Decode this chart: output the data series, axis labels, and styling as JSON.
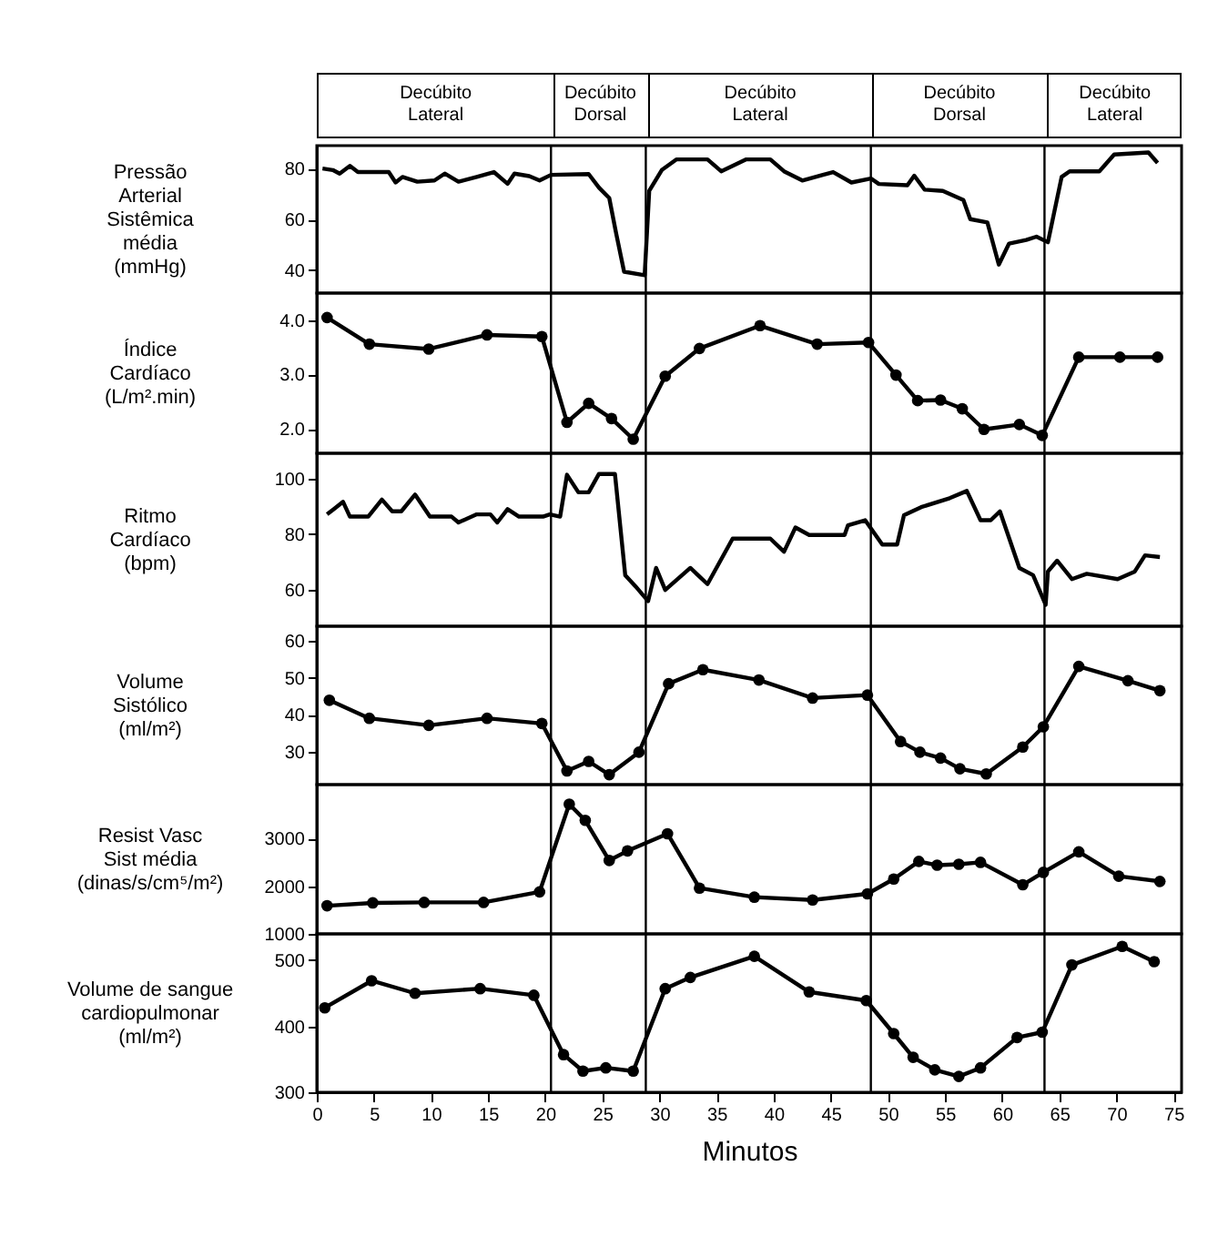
{
  "chart_data": [
    {
      "type": "line",
      "ylabel": "Pressão\nArterial\nSistêmica\nmédia\n(mmHg)",
      "xlim": [
        0,
        75.7
      ],
      "ylim": [
        31,
        89
      ],
      "yticks": [
        40,
        60,
        80
      ],
      "tick_labels": "y",
      "marker": "none",
      "line_style": "solid",
      "annotations": [
        "Decúbito\nLateral",
        "Decúbito\nDorsal",
        "Decúbito\nLateral",
        "Decúbito\nDorsal",
        "Decúbito\nLateral"
      ],
      "ref_lines": [
        {
          "axis": "x",
          "value": 20.5
        },
        {
          "axis": "x",
          "value": 28.8
        },
        {
          "axis": "x",
          "value": 48.5
        },
        {
          "axis": "x",
          "value": 63.7
        }
      ],
      "series": [
        {
          "color": "#000000",
          "x": [
            0.5,
            1.4,
            2.0,
            2.9,
            3.6,
            6.3,
            6.9,
            7.5,
            8.8,
            10.3,
            11.2,
            12.4,
            14.0,
            15.5,
            16.7,
            17.3,
            18.6,
            19.5,
            20.5,
            23.8,
            24.7,
            25.6,
            26.2,
            26.9,
            28.7,
            29.1,
            30.2,
            31.5,
            34.2,
            35.4,
            37.6,
            39.7,
            40.9,
            42.5,
            44.3,
            45.2,
            46.8,
            48.5,
            49.2,
            51.7,
            52.3,
            53.2,
            54.8,
            56.6,
            57.2,
            58.7,
            59.7,
            60.6,
            62.1,
            63.0,
            64.0,
            65.2,
            65.9,
            68.5,
            69.8,
            72.8,
            73.6
          ],
          "values": [
            80,
            79.4,
            78,
            81,
            78.6,
            78.6,
            74.5,
            76.7,
            74.8,
            75.3,
            78,
            74.8,
            76.7,
            78.6,
            74,
            78,
            77,
            75.3,
            77.5,
            77.8,
            72.5,
            68.4,
            54.6,
            39.4,
            38,
            71.2,
            79.4,
            83.6,
            83.6,
            78.9,
            83.6,
            83.6,
            78.9,
            75.3,
            77.5,
            78.6,
            74.5,
            76.1,
            73.9,
            73.4,
            77.2,
            71.7,
            71.2,
            67.6,
            60.1,
            58.8,
            42.2,
            50.5,
            51.9,
            53.2,
            51,
            76.7,
            78.9,
            78.9,
            85.5,
            86.3,
            82.2
          ]
        }
      ]
    },
    {
      "type": "line",
      "ylabel": "Índice\nCardíaco\n(L/m².min)",
      "xlim": [
        0,
        75.7
      ],
      "ylim": [
        1.55,
        4.5
      ],
      "yticks": [
        {
          "value": 2,
          "label": "2.0"
        },
        {
          "value": 3,
          "label": "3.0"
        },
        {
          "value": 4,
          "label": "4.0"
        }
      ],
      "tick_labels": "y",
      "marker": "circle",
      "line_style": "solid",
      "ref_lines": [
        {
          "axis": "x",
          "value": 20.5
        },
        {
          "axis": "x",
          "value": 28.8
        },
        {
          "axis": "x",
          "value": 48.5
        },
        {
          "axis": "x",
          "value": 63.7
        }
      ],
      "series": [
        {
          "color": "#000000",
          "x": [
            0.9,
            4.6,
            9.8,
            14.9,
            19.7,
            21.9,
            23.8,
            25.8,
            27.7,
            30.5,
            33.5,
            38.8,
            43.8,
            48.3,
            50.7,
            52.6,
            54.6,
            56.5,
            58.4,
            61.5,
            63.5,
            66.7,
            70.3,
            73.6
          ],
          "values": [
            4.05,
            3.56,
            3.47,
            3.73,
            3.7,
            2.12,
            2.47,
            2.19,
            1.81,
            2.97,
            3.48,
            3.9,
            3.56,
            3.59,
            2.99,
            2.52,
            2.53,
            2.37,
            1.99,
            2.08,
            1.88,
            3.32,
            3.32,
            3.32
          ]
        }
      ]
    },
    {
      "type": "line",
      "ylabel": "Ritmo\nCardíaco\n(bpm)",
      "xlim": [
        0,
        75.7
      ],
      "ylim": [
        47,
        109
      ],
      "yticks": [
        60,
        80,
        100
      ],
      "tick_labels": "y",
      "marker": "none",
      "line_style": "solid",
      "ref_lines": [
        {
          "axis": "x",
          "value": 20.5
        },
        {
          "axis": "x",
          "value": 28.8
        },
        {
          "axis": "x",
          "value": 48.5
        },
        {
          "axis": "x",
          "value": 63.7
        }
      ],
      "series": [
        {
          "color": "#000000",
          "x": [
            0.9,
            1.5,
            2.3,
            2.9,
            4.5,
            5.7,
            6.6,
            7.4,
            8.6,
            9.9,
            11.8,
            12.4,
            14.0,
            15.2,
            15.8,
            16.7,
            17.7,
            19.8,
            20.4,
            21.3,
            21.9,
            22.9,
            23.8,
            24.7,
            26.1,
            27.0,
            27.9,
            29.0,
            29.7,
            30.5,
            32.7,
            34.2,
            36.4,
            39.7,
            40.9,
            41.9,
            43.1,
            46.2,
            46.5,
            48.0,
            49.5,
            50.8,
            51.4,
            52.9,
            55.4,
            56.9,
            58.1,
            59.0,
            59.8,
            61.5,
            62.7,
            63.8,
            64.0,
            64.8,
            66.1,
            67.4,
            70.1,
            71.6,
            72.5,
            73.8
          ],
          "values": [
            87.1,
            89,
            91.6,
            86.3,
            86.3,
            92.4,
            88.2,
            88.2,
            94.2,
            86.3,
            86.3,
            84.2,
            87.1,
            87.1,
            84.2,
            89,
            86.3,
            86.3,
            87.1,
            86.3,
            101.3,
            95,
            95,
            101.6,
            101.6,
            65.3,
            61.3,
            56,
            67.9,
            60,
            67.9,
            62.1,
            78.4,
            78.4,
            73.7,
            82.4,
            79.7,
            79.7,
            83.2,
            85,
            76.3,
            76.3,
            86.8,
            89.7,
            92.9,
            95.5,
            85,
            85,
            88.2,
            67.9,
            65.3,
            54.7,
            66.6,
            70.5,
            63.9,
            65.8,
            63.9,
            66.6,
            72.4,
            71.8
          ]
        }
      ]
    },
    {
      "type": "line",
      "ylabel": "Volume\nSistólico\n(ml/m²)",
      "xlim": [
        0,
        75.7
      ],
      "ylim": [
        21,
        64
      ],
      "yticks": [
        30,
        40,
        50,
        60
      ],
      "tick_labels": "y",
      "marker": "circle",
      "line_style": "solid",
      "ref_lines": [
        {
          "axis": "x",
          "value": 20.5
        },
        {
          "axis": "x",
          "value": 28.8
        },
        {
          "axis": "x",
          "value": 48.5
        },
        {
          "axis": "x",
          "value": 63.7
        }
      ],
      "series": [
        {
          "color": "#000000",
          "x": [
            1.1,
            4.6,
            9.8,
            14.9,
            19.7,
            21.9,
            23.8,
            25.6,
            28.2,
            30.8,
            33.8,
            38.7,
            43.4,
            48.2,
            51.1,
            52.8,
            54.6,
            56.3,
            58.6,
            61.8,
            63.6,
            66.7,
            71.0,
            73.8
          ],
          "values": [
            43.9,
            39.0,
            37.1,
            39.0,
            37.6,
            24.7,
            27.3,
            23.7,
            29.8,
            48.4,
            52.2,
            49.4,
            44.5,
            45.3,
            32.7,
            29.8,
            28.2,
            25.3,
            23.9,
            31.2,
            36.7,
            53.1,
            49.2,
            46.5
          ]
        }
      ]
    },
    {
      "type": "line",
      "ylabel": "Resist Vasc\nSist média\n(dinas/s/cm⁵/m²)",
      "xlim": [
        0,
        75.7
      ],
      "ylim": [
        1000,
        4130
      ],
      "yticks": [
        1000,
        2000,
        3000
      ],
      "tick_labels": "y",
      "marker": "circle",
      "line_style": "solid",
      "ref_lines": [
        {
          "axis": "x",
          "value": 20.5
        },
        {
          "axis": "x",
          "value": 28.8
        },
        {
          "axis": "x",
          "value": 48.5
        },
        {
          "axis": "x",
          "value": 63.7
        }
      ],
      "series": [
        {
          "color": "#000000",
          "x": [
            0.9,
            4.9,
            9.4,
            14.6,
            19.5,
            22.1,
            23.5,
            25.6,
            27.2,
            30.7,
            33.5,
            38.3,
            43.4,
            48.2,
            50.5,
            52.7,
            54.3,
            56.2,
            58.1,
            61.8,
            63.6,
            66.7,
            70.2,
            73.8
          ],
          "values": [
            1590,
            1650,
            1660,
            1660,
            1880,
            3720,
            3380,
            2540,
            2740,
            3100,
            1960,
            1770,
            1710,
            1840,
            2150,
            2520,
            2440,
            2460,
            2500,
            2030,
            2290,
            2720,
            2210,
            2100
          ]
        }
      ]
    },
    {
      "type": "line",
      "ylabel": "Volume de sangue\ncardiopulmonar\n(ml/m²)",
      "xlabel": "Minutos",
      "xlim": [
        0,
        75.7
      ],
      "xticks": [
        0,
        5,
        10,
        15,
        20,
        25,
        30,
        35,
        40,
        45,
        50,
        55,
        60,
        65,
        70,
        75
      ],
      "ylim": [
        300,
        540
      ],
      "yticks": [
        300,
        400,
        500
      ],
      "marker": "circle",
      "line_style": "solid",
      "ref_lines": [
        {
          "axis": "x",
          "value": 20.5
        },
        {
          "axis": "x",
          "value": 28.8
        },
        {
          "axis": "x",
          "value": 48.5
        },
        {
          "axis": "x",
          "value": 63.7
        }
      ],
      "series": [
        {
          "color": "#000000",
          "x": [
            0.7,
            4.8,
            8.6,
            14.3,
            19.0,
            21.6,
            23.3,
            25.3,
            27.7,
            30.5,
            32.7,
            38.3,
            43.1,
            48.1,
            50.5,
            52.2,
            54.1,
            56.2,
            58.1,
            61.3,
            63.5,
            66.1,
            70.5,
            73.3
          ],
          "values": [
            428,
            469,
            450,
            457,
            447,
            357,
            332,
            337,
            332,
            457,
            474,
            506,
            452,
            439,
            389,
            353,
            334,
            324,
            337,
            383,
            391,
            493,
            521,
            498
          ]
        }
      ]
    }
  ]
}
